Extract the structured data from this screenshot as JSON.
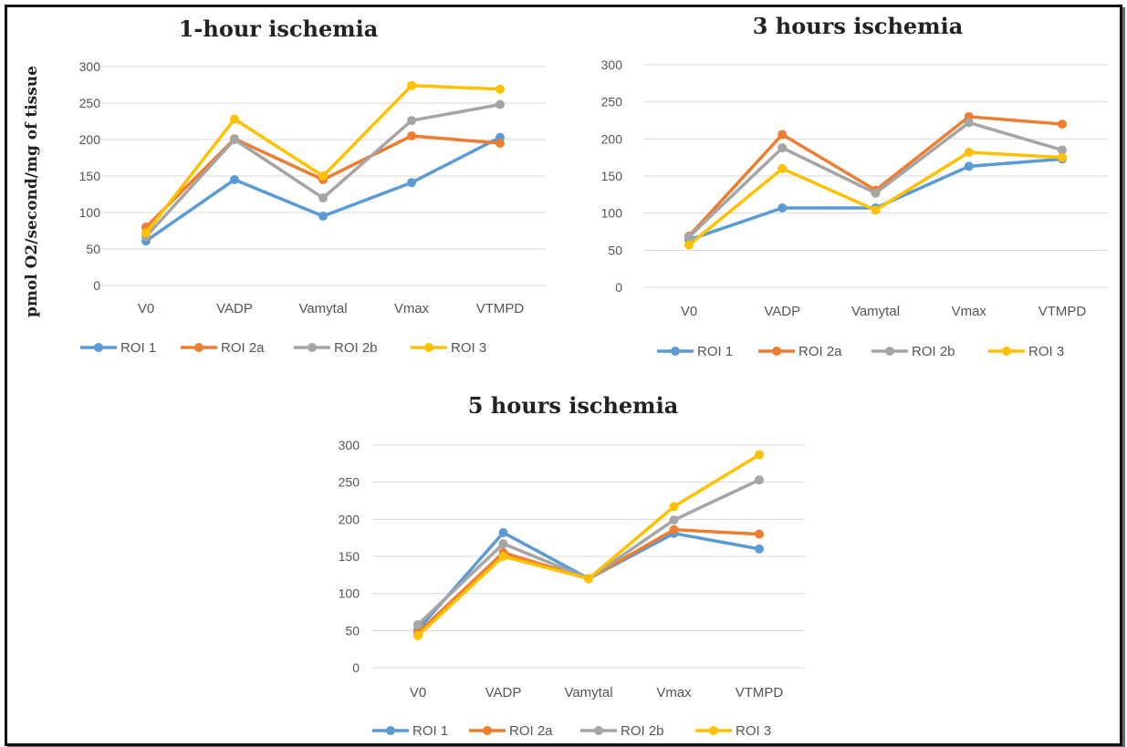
{
  "colors": {
    "ROI 1": "#5b9bd5",
    "ROI 2a": "#ed7d31",
    "ROI 2b": "#a5a5a5",
    "ROI 3": "#ffc000"
  },
  "ylabel": "pmol O2/second/mg of tissue",
  "chart_data": [
    {
      "type": "line",
      "title": "1-hour ischemia",
      "categories": [
        "V0",
        "VADP",
        "Vamytal",
        "Vmax",
        "VTMPD"
      ],
      "yticks": [
        0,
        50,
        100,
        150,
        200,
        250,
        300
      ],
      "ylim": [
        0,
        300
      ],
      "grid": true,
      "legend": "bottom",
      "series": [
        {
          "name": "ROI 1",
          "values": [
            61,
            145,
            95,
            141,
            203
          ]
        },
        {
          "name": "ROI 2a",
          "values": [
            80,
            201,
            145,
            205,
            195
          ]
        },
        {
          "name": "ROI 2b",
          "values": [
            67,
            200,
            120,
            226,
            248
          ]
        },
        {
          "name": "ROI 3",
          "values": [
            72,
            228,
            150,
            274,
            269
          ]
        }
      ]
    },
    {
      "type": "line",
      "title": "3 hours ischemia",
      "categories": [
        "V0",
        "VADP",
        "Vamytal",
        "Vmax",
        "VTMPD"
      ],
      "yticks": [
        0,
        50,
        100,
        150,
        200,
        250,
        300
      ],
      "ylim": [
        0,
        300
      ],
      "grid": true,
      "legend": "bottom",
      "series": [
        {
          "name": "ROI 1",
          "values": [
            64,
            107,
            107,
            163,
            173
          ]
        },
        {
          "name": "ROI 2a",
          "values": [
            69,
            206,
            131,
            230,
            220
          ]
        },
        {
          "name": "ROI 2b",
          "values": [
            68,
            188,
            127,
            222,
            185
          ]
        },
        {
          "name": "ROI 3",
          "values": [
            57,
            160,
            104,
            182,
            175
          ]
        }
      ]
    },
    {
      "type": "line",
      "title": "5 hours ischemia",
      "categories": [
        "V0",
        "VADP",
        "Vamytal",
        "Vmax",
        "VTMPD"
      ],
      "yticks": [
        0,
        50,
        100,
        150,
        200,
        250,
        300
      ],
      "ylim": [
        0,
        300
      ],
      "grid": true,
      "legend": "bottom",
      "series": [
        {
          "name": "ROI 1",
          "values": [
            51,
            182,
            120,
            181,
            160
          ]
        },
        {
          "name": "ROI 2a",
          "values": [
            47,
            155,
            120,
            186,
            180
          ]
        },
        {
          "name": "ROI 2b",
          "values": [
            58,
            167,
            120,
            199,
            253
          ]
        },
        {
          "name": "ROI 3",
          "values": [
            43,
            150,
            120,
            217,
            287
          ]
        }
      ]
    }
  ]
}
